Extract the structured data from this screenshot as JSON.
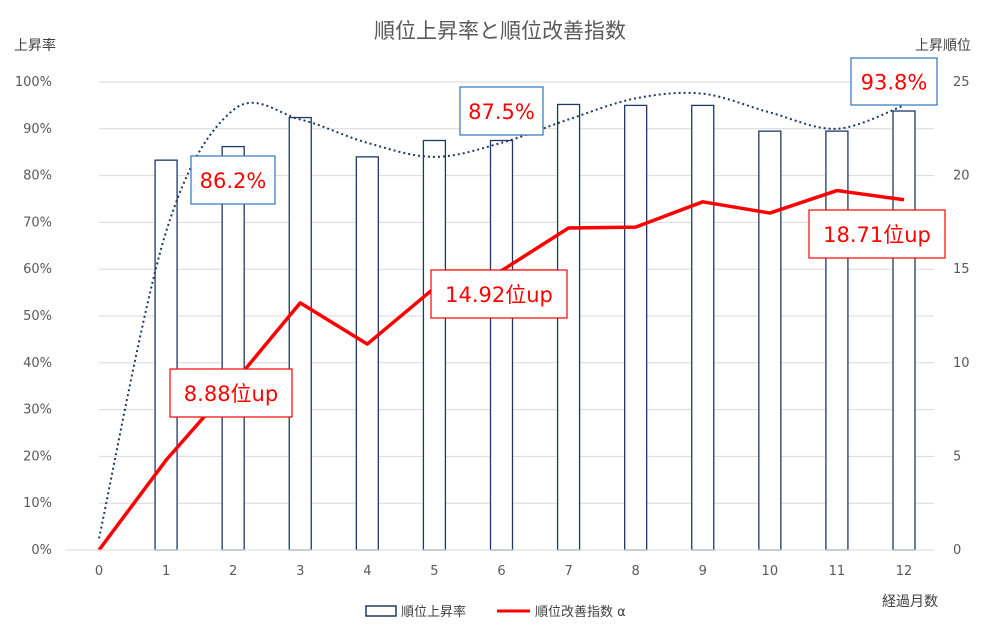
{
  "chart_data": {
    "type": "bar",
    "title": "順位上昇率と順位改善指数",
    "xlabel": "経過月数",
    "ylabel_left": "上昇率",
    "ylabel_right": "上昇順位",
    "categories": [
      "0",
      "1",
      "2",
      "3",
      "4",
      "5",
      "6",
      "7",
      "8",
      "9",
      "10",
      "11",
      "12"
    ],
    "ylim_left": [
      0,
      100
    ],
    "ylim_right": [
      0,
      25
    ],
    "left_ticks": [
      "0%",
      "10%",
      "20%",
      "30%",
      "40%",
      "50%",
      "60%",
      "70%",
      "80%",
      "90%",
      "100%"
    ],
    "right_ticks": [
      "0",
      "5",
      "10",
      "15",
      "20",
      "25"
    ],
    "grid": true,
    "legend_position": "bottom",
    "series": [
      {
        "name": "順位上昇率",
        "type": "bar",
        "axis": "left",
        "color": "#1f3864",
        "values": [
          null,
          83.3,
          86.2,
          92.4,
          84.0,
          87.5,
          87.5,
          95.2,
          95.0,
          95.0,
          89.5,
          89.5,
          93.8
        ]
      },
      {
        "name": "順位改善指数 α",
        "type": "line",
        "axis": "right",
        "color": "#ff0000",
        "values": [
          0,
          4.8,
          8.88,
          13.2,
          11.0,
          14.0,
          14.92,
          17.2,
          17.25,
          18.6,
          18.0,
          19.2,
          18.71
        ]
      },
      {
        "type": "line",
        "style": "dotted",
        "axis": "left",
        "color": "#1f3864",
        "values": [
          2.5,
          68,
          94,
          92,
          87,
          84,
          87,
          92,
          96.5,
          97.5,
          93.5,
          90,
          95
        ]
      }
    ],
    "annotations": [
      {
        "text": "86.2%",
        "style": "blue-box",
        "category": "2"
      },
      {
        "text": "87.5%",
        "style": "blue-box",
        "category": "6"
      },
      {
        "text": "93.8%",
        "style": "blue-box",
        "category": "12"
      },
      {
        "text": "8.88位up",
        "style": "red-box",
        "category": "2"
      },
      {
        "text": "14.92位up",
        "style": "red-box",
        "category": "6"
      },
      {
        "text": "18.71位up",
        "style": "red-box",
        "category": "12"
      }
    ]
  }
}
